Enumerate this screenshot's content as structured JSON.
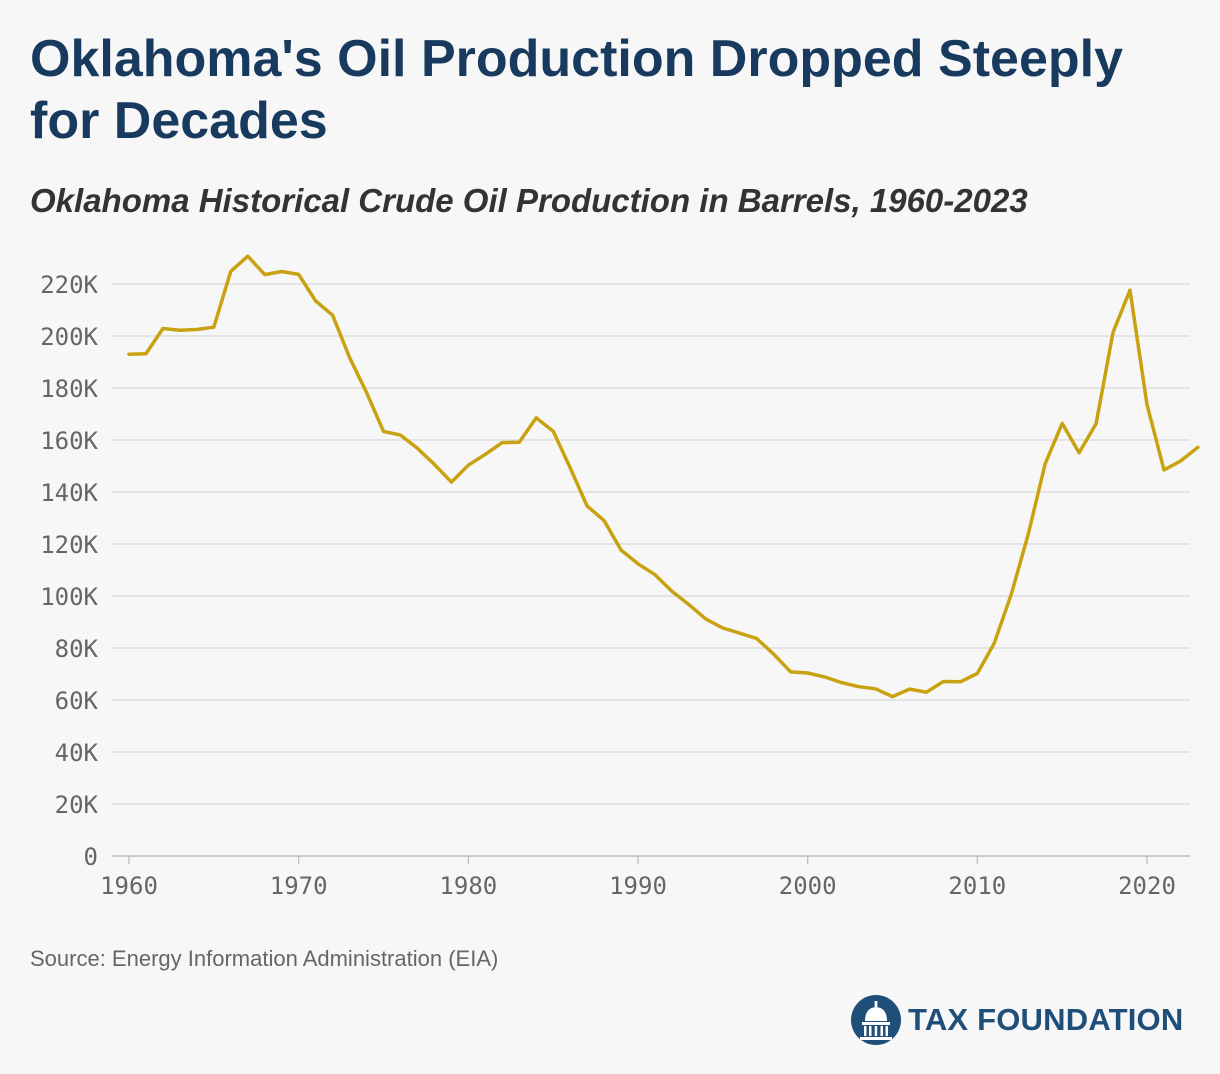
{
  "title": "Oklahoma's Oil Production Dropped Steeply for Decades",
  "subtitle": "Oklahoma Historical Crude Oil Production in Barrels, 1960-2023",
  "source": "Source: Energy Information Administration (EIA)",
  "logo": {
    "text": "TAX FOUNDATION",
    "icon": "capitol-dome-icon",
    "color": "#1f4e79"
  },
  "chart_data": {
    "type": "line",
    "title": "Oklahoma's Oil Production Dropped Steeply for Decades",
    "subtitle": "Oklahoma Historical Crude Oil Production in Barrels, 1960-2023",
    "xlabel": "",
    "ylabel": "",
    "xlim": [
      1960,
      2024
    ],
    "ylim": [
      0,
      230000
    ],
    "grid": true,
    "line_color": "#c9a212",
    "x_ticks": [
      1960,
      1970,
      1980,
      1990,
      2000,
      2010,
      2020
    ],
    "y_ticks": [
      0,
      20000,
      40000,
      60000,
      80000,
      100000,
      120000,
      140000,
      160000,
      180000,
      200000,
      220000
    ],
    "y_tick_labels": [
      "0",
      "20K",
      "40K",
      "60K",
      "80K",
      "100K",
      "120K",
      "140K",
      "160K",
      "180K",
      "200K",
      "220K"
    ],
    "series": [
      {
        "x": [
          1960,
          1961,
          1962,
          1963,
          1964,
          1965,
          1966,
          1967,
          1968,
          1969,
          1970,
          1971,
          1972,
          1973,
          1974,
          1975,
          1976,
          1977,
          1978,
          1979,
          1980,
          1981,
          1982,
          1983,
          1984,
          1985,
          1986,
          1987,
          1988,
          1989,
          1990,
          1991,
          1992,
          1993,
          1994,
          1995,
          1996,
          1997,
          1998,
          1999,
          2000,
          2001,
          2002,
          2003,
          2004,
          2005,
          2006,
          2007,
          2008,
          2009,
          2010,
          2011,
          2012,
          2013,
          2014,
          2015,
          2016,
          2017,
          2018,
          2019,
          2020,
          2021,
          2022,
          2023
        ],
        "values": [
          193000,
          193200,
          202900,
          202200,
          202500,
          203400,
          224900,
          230700,
          223600,
          224800,
          223700,
          213500,
          208000,
          191700,
          178300,
          163300,
          161900,
          156800,
          150600,
          143800,
          150300,
          154500,
          159000,
          159100,
          168500,
          163400,
          149400,
          134600,
          129000,
          117700,
          112400,
          108200,
          101800,
          96700,
          91100,
          87700,
          85700,
          83600,
          77600,
          70800,
          70400,
          68900,
          66700,
          65100,
          64300,
          61300,
          64200,
          63000,
          67100,
          67000,
          70200,
          81900,
          100700,
          123700,
          150900,
          166400,
          155100,
          166300,
          201500,
          217600,
          173600,
          148500,
          152000,
          157200
        ]
      }
    ]
  }
}
